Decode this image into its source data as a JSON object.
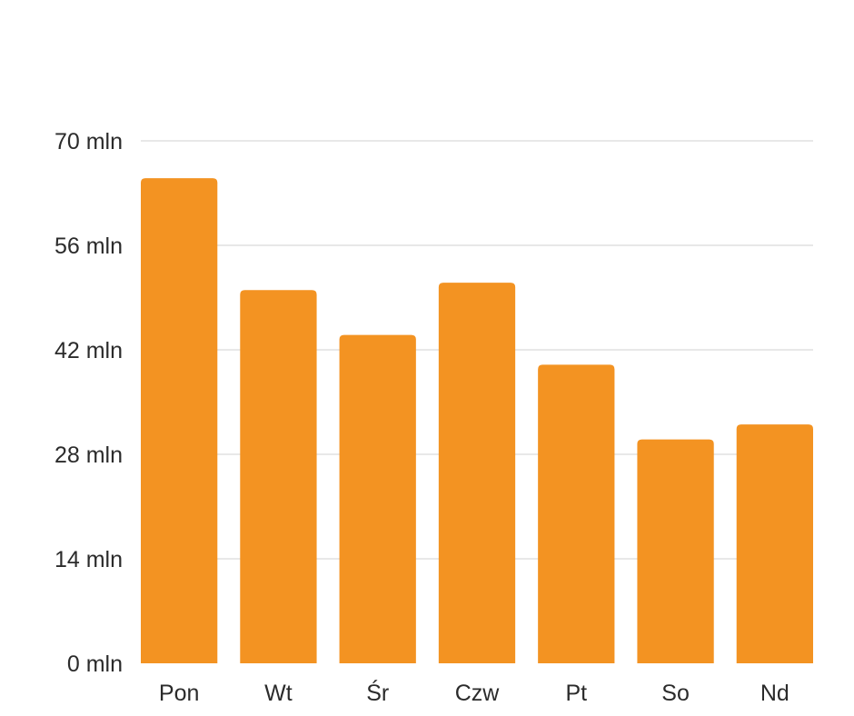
{
  "chart_data": {
    "type": "bar",
    "categories": [
      "Pon",
      "Wt",
      "Śr",
      "Czw",
      "Pt",
      "So",
      "Nd"
    ],
    "values": [
      65,
      50,
      44,
      51,
      40,
      30,
      32
    ],
    "unit_suffix": " mln",
    "ylim": [
      0,
      70
    ],
    "yticks": [
      0,
      14,
      28,
      42,
      56,
      70
    ],
    "ytick_labels": [
      "0 mln",
      "14 mln",
      "28 mln",
      "42 mln",
      "56 mln",
      "70 mln"
    ],
    "title": "",
    "xlabel": "",
    "ylabel": "",
    "grid": true,
    "bar_color": "#F39322",
    "grid_color": "#D0D0D0"
  }
}
